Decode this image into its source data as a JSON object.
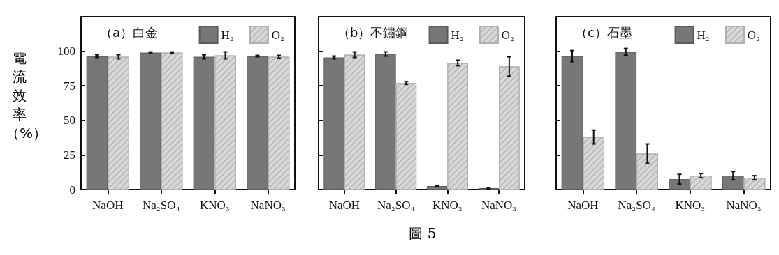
{
  "chart_data": [
    {
      "type": "bar",
      "title": "（a）白金",
      "ylabel": "電流效率（%）",
      "categories": [
        "NaOH",
        "Na₂SO₄",
        "KNO₃",
        "NaNO₃"
      ],
      "series": [
        {
          "name": "H₂",
          "color": "#777777",
          "values": [
            96.5,
            99,
            96,
            96.5
          ],
          "errors": [
            1,
            0.5,
            1.5,
            0.5
          ]
        },
        {
          "name": "O₂",
          "color": "#d9d9d9",
          "values": [
            96,
            99,
            97,
            96
          ],
          "errors": [
            1.5,
            0.5,
            2.5,
            1
          ]
        }
      ],
      "ylim": [
        0,
        125
      ],
      "yticks": [
        0,
        25,
        50,
        75,
        100
      ],
      "legend": "top right",
      "grid": false
    },
    {
      "type": "bar",
      "title": "（b）不鏽鋼",
      "categories": [
        "NaOH",
        "Na₂SO₄",
        "KNO₃",
        "NaNO₃"
      ],
      "series": [
        {
          "name": "H₂",
          "color": "#777777",
          "values": [
            95.5,
            98,
            2.5,
            1
          ],
          "errors": [
            1,
            1.5,
            0.5,
            0.5
          ]
        },
        {
          "name": "O₂",
          "color": "#d9d9d9",
          "values": [
            97.5,
            77,
            91.5,
            89
          ],
          "errors": [
            2,
            1,
            2,
            7
          ]
        }
      ],
      "ylim": [
        0,
        125
      ],
      "yticks": [
        {
          "value": 0,
          "label": null
        },
        {
          "value": 25,
          "label": null
        },
        {
          "value": 50,
          "label": null
        },
        {
          "value": 75,
          "label": null
        },
        {
          "value": 100,
          "label": null
        }
      ],
      "tick_labels": "x",
      "legend": "top right",
      "grid": false,
      "annotations": [
        "圖 5"
      ]
    },
    {
      "type": "bar",
      "title": "（c）石墨",
      "categories": [
        "NaOH",
        "Na₂SO₄",
        "KNO₃",
        "NaNO₃"
      ],
      "series": [
        {
          "name": "H₂",
          "color": "#777777",
          "values": [
            96.5,
            99.5,
            7.5,
            10
          ],
          "errors": [
            4,
            2.5,
            3.5,
            3
          ]
        },
        {
          "name": "O₂",
          "color": "#d9d9d9",
          "values": [
            38,
            26,
            10,
            8.5
          ],
          "errors": [
            5,
            7,
            1.5,
            1.5
          ]
        }
      ],
      "ylim": [
        0,
        125
      ],
      "yticks": [
        {
          "value": 0,
          "label": null
        },
        {
          "value": 25,
          "label": null
        },
        {
          "value": 50,
          "label": null
        },
        {
          "value": 75,
          "label": null
        },
        {
          "value": 100,
          "label": null
        }
      ],
      "tick_labels": "x",
      "legend": "top right",
      "grid": false
    }
  ]
}
